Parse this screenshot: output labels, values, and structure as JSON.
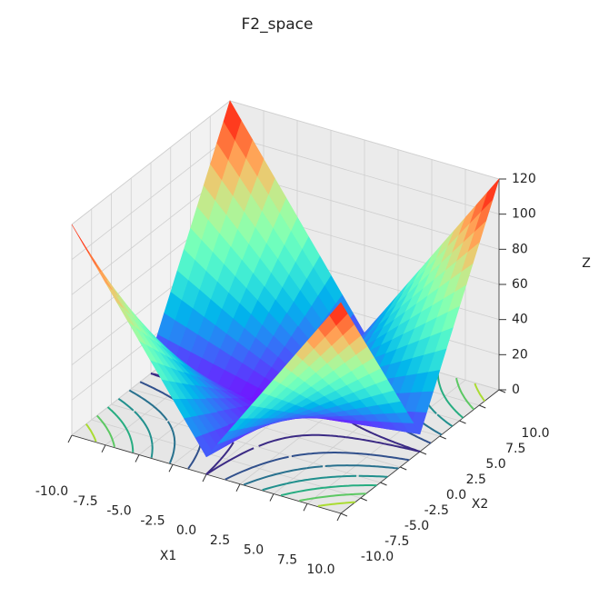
{
  "chart_data": {
    "type": "surface3d",
    "title": "F2_space",
    "x_label": "X1",
    "y_label": "X2",
    "z_label": "Z",
    "x": [
      -10,
      -5,
      0,
      5,
      10
    ],
    "y": [
      -10,
      -5,
      0,
      5,
      10
    ],
    "z": [
      [
        120,
        65,
        10,
        65,
        120
      ],
      [
        65,
        35,
        5,
        35,
        65
      ],
      [
        10,
        5,
        0,
        5,
        10
      ],
      [
        65,
        35,
        5,
        35,
        65
      ],
      [
        120,
        65,
        10,
        65,
        120
      ]
    ],
    "colormap": "rainbow",
    "xlim": [
      -10,
      10
    ],
    "ylim": [
      -10,
      10
    ],
    "zlim": [
      0,
      120
    ],
    "xticks": [
      {
        "value": -10,
        "label": "-10.0"
      },
      {
        "value": -7.5,
        "label": "-7.5"
      },
      {
        "value": -5,
        "label": "-5.0"
      },
      {
        "value": -2.5,
        "label": "-2.5"
      },
      {
        "value": 0,
        "label": "0.0"
      },
      {
        "value": 2.5,
        "label": "2.5"
      },
      {
        "value": 5,
        "label": "5.0"
      },
      {
        "value": 7.5,
        "label": "7.5"
      },
      {
        "value": 10,
        "label": "10.0"
      }
    ],
    "yticks": [
      {
        "value": -10,
        "label": "-10.0"
      },
      {
        "value": -7.5,
        "label": "-7.5"
      },
      {
        "value": -5,
        "label": "-5.0"
      },
      {
        "value": -2.5,
        "label": "-2.5"
      },
      {
        "value": 0,
        "label": "0.0"
      },
      {
        "value": 2.5,
        "label": "2.5"
      },
      {
        "value": 5,
        "label": "5.0"
      },
      {
        "value": 7.5,
        "label": "7.5"
      },
      {
        "value": 10,
        "label": "10.0"
      }
    ],
    "zticks": [
      0,
      20,
      40,
      60,
      80,
      100,
      120
    ],
    "contour": {
      "levels": [
        10,
        25,
        40,
        55,
        70,
        85,
        100
      ],
      "colors": [
        "#3b2a84",
        "#31508c",
        "#28718e",
        "#21908d",
        "#27ad81",
        "#5cc863",
        "#aadc32"
      ]
    },
    "grid": true
  }
}
